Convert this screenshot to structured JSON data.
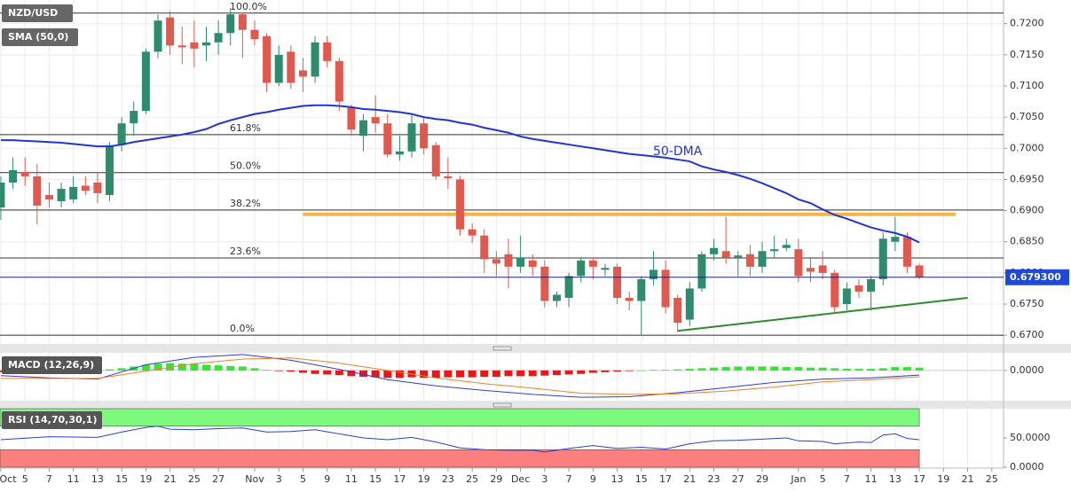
{
  "chart_data": [
    {
      "type": "candlestick",
      "title": "NZD/USD",
      "indicator": "SMA (50,0)",
      "xlim": [
        -0.07,
        82.97
      ],
      "ylim": [
        0.6686,
        0.7238
      ],
      "yticks": [
        {
          "value": 0.67,
          "label": "0.6700"
        },
        {
          "value": 0.675,
          "label": "0.6750"
        },
        {
          "value": 0.68,
          "label": "0.6800"
        },
        {
          "value": 0.685,
          "label": "0.6850"
        },
        {
          "value": 0.69,
          "label": "0.6900"
        },
        {
          "value": 0.695,
          "label": "0.6950"
        },
        {
          "value": 0.7,
          "label": "0.7000"
        },
        {
          "value": 0.705,
          "label": "0.7050"
        },
        {
          "value": 0.71,
          "label": "0.7100"
        },
        {
          "value": 0.715,
          "label": "0.7150"
        },
        {
          "value": 0.72,
          "label": "0.7200"
        }
      ],
      "up_color": "#2e8b6e",
      "down_color": "#e0594f",
      "open": [
        0.6905,
        0.6945,
        0.6962,
        0.6955,
        0.6925,
        0.6915,
        0.6918,
        0.694,
        0.6945,
        0.6925,
        0.7005,
        0.704,
        0.706,
        0.7155,
        0.721,
        0.7165,
        0.717,
        0.7165,
        0.717,
        0.7185,
        0.7215,
        0.719,
        0.718,
        0.7105,
        0.7155,
        0.7125,
        0.7115,
        0.717,
        0.714,
        0.7065,
        0.702,
        0.705,
        0.704,
        0.699,
        0.6995,
        0.704,
        0.7005,
        0.6955,
        0.695,
        0.687,
        0.686,
        0.6822,
        0.683,
        0.681,
        0.682,
        0.681,
        0.6755,
        0.676,
        0.6795,
        0.682,
        0.6805,
        0.681,
        0.676,
        0.6755,
        0.679,
        0.6805,
        0.676,
        0.6725,
        0.6775,
        0.683,
        0.6835,
        0.6825,
        0.683,
        0.681,
        0.6835,
        0.684,
        0.6838,
        0.6808,
        0.6812,
        0.68,
        0.675,
        0.678,
        0.677,
        0.679,
        0.685,
        0.6858,
        0.6812
      ],
      "high": [
        0.6955,
        0.6985,
        0.6985,
        0.6975,
        0.6945,
        0.6945,
        0.6955,
        0.6955,
        0.6962,
        0.701,
        0.705,
        0.7075,
        0.716,
        0.7215,
        0.722,
        0.7195,
        0.7205,
        0.7195,
        0.7205,
        0.7225,
        0.7218,
        0.7205,
        0.7185,
        0.7165,
        0.7165,
        0.7145,
        0.718,
        0.718,
        0.7145,
        0.707,
        0.7055,
        0.7085,
        0.7055,
        0.702,
        0.7055,
        0.705,
        0.701,
        0.6985,
        0.6955,
        0.688,
        0.687,
        0.6835,
        0.6855,
        0.686,
        0.683,
        0.682,
        0.677,
        0.68,
        0.6825,
        0.6825,
        0.6815,
        0.6815,
        0.677,
        0.6795,
        0.6835,
        0.682,
        0.6765,
        0.6785,
        0.6835,
        0.6855,
        0.689,
        0.6835,
        0.6845,
        0.685,
        0.686,
        0.6855,
        0.6855,
        0.6825,
        0.6835,
        0.6805,
        0.6785,
        0.679,
        0.6795,
        0.6865,
        0.689,
        0.6865,
        0.6815
      ],
      "low": [
        0.6885,
        0.6935,
        0.694,
        0.6878,
        0.6905,
        0.6905,
        0.6912,
        0.6925,
        0.6912,
        0.6915,
        0.6995,
        0.702,
        0.7055,
        0.7145,
        0.715,
        0.7135,
        0.713,
        0.714,
        0.715,
        0.7165,
        0.7145,
        0.7165,
        0.709,
        0.71,
        0.7095,
        0.709,
        0.7105,
        0.713,
        0.706,
        0.702,
        0.6995,
        0.7025,
        0.6985,
        0.698,
        0.6985,
        0.699,
        0.695,
        0.6935,
        0.686,
        0.6848,
        0.68,
        0.6795,
        0.6775,
        0.68,
        0.6795,
        0.6745,
        0.6745,
        0.6745,
        0.6785,
        0.679,
        0.6795,
        0.675,
        0.674,
        0.67,
        0.678,
        0.6735,
        0.6705,
        0.6715,
        0.677,
        0.682,
        0.6815,
        0.6795,
        0.6795,
        0.68,
        0.6825,
        0.6835,
        0.6785,
        0.6785,
        0.679,
        0.6735,
        0.674,
        0.676,
        0.674,
        0.678,
        0.6835,
        0.68,
        0.679
      ],
      "close": [
        0.6945,
        0.6965,
        0.6955,
        0.6908,
        0.6918,
        0.6935,
        0.6938,
        0.6932,
        0.6928,
        0.7005,
        0.704,
        0.706,
        0.7155,
        0.7205,
        0.7165,
        0.7162,
        0.716,
        0.717,
        0.7185,
        0.7215,
        0.719,
        0.7175,
        0.7105,
        0.715,
        0.7105,
        0.7115,
        0.717,
        0.714,
        0.7075,
        0.703,
        0.7045,
        0.704,
        0.699,
        0.6995,
        0.704,
        0.7,
        0.6955,
        0.6952,
        0.687,
        0.686,
        0.6822,
        0.6815,
        0.681,
        0.6825,
        0.681,
        0.6755,
        0.6765,
        0.6795,
        0.682,
        0.681,
        0.6808,
        0.676,
        0.6755,
        0.679,
        0.6805,
        0.6745,
        0.672,
        0.6775,
        0.683,
        0.684,
        0.6825,
        0.6828,
        0.681,
        0.6835,
        0.6838,
        0.6845,
        0.6795,
        0.6802,
        0.68,
        0.6745,
        0.6775,
        0.677,
        0.679,
        0.6855,
        0.6858,
        0.681,
        0.6793
      ],
      "sma": {
        "name": "50-DMA",
        "color": "#1f35d6",
        "values": [
          0.7013,
          0.7013,
          0.7012,
          0.7011,
          0.701,
          0.7009,
          0.7007,
          0.7005,
          0.7003,
          0.7003,
          0.7006,
          0.701,
          0.7013,
          0.7016,
          0.7019,
          0.7022,
          0.7026,
          0.7031,
          0.7039,
          0.7045,
          0.705,
          0.7055,
          0.7058,
          0.7062,
          0.7065,
          0.7068,
          0.7069,
          0.7069,
          0.7068,
          0.7066,
          0.7063,
          0.7062,
          0.706,
          0.7058,
          0.7055,
          0.705,
          0.7047,
          0.7045,
          0.7041,
          0.7038,
          0.7033,
          0.7029,
          0.7025,
          0.7019,
          0.7015,
          0.7012,
          0.7009,
          0.7006,
          0.7003,
          0.7,
          0.6997,
          0.6994,
          0.6991,
          0.6989,
          0.6987,
          0.6985,
          0.6982,
          0.6979,
          0.6971,
          0.6966,
          0.6962,
          0.6957,
          0.6951,
          0.6944,
          0.6936,
          0.6928,
          0.6918,
          0.6912,
          0.6902,
          0.6893,
          0.6887,
          0.688,
          0.6873,
          0.6868,
          0.6864,
          0.6858,
          0.6849
        ]
      },
      "fib_levels": [
        {
          "label": "100.0%",
          "value": 0.7217
        },
        {
          "label": "61.8%",
          "value": 0.7022
        },
        {
          "label": "50.0%",
          "value": 0.6961
        },
        {
          "label": "38.2%",
          "value": 0.6901
        },
        {
          "label": "23.6%",
          "value": 0.6824
        },
        {
          "label": "0.0%",
          "value": 0.67
        }
      ],
      "resistance": {
        "color": "#f5b544",
        "x": [
          25,
          79
        ],
        "y": [
          0.6894,
          0.6894
        ]
      },
      "support": {
        "color": "#2e8b2e",
        "x": [
          56,
          80
        ],
        "y": [
          0.6707,
          0.676
        ]
      },
      "last_price": {
        "value": 0.6793,
        "label": "0.679300"
      }
    },
    {
      "type": "bar",
      "title": "MACD (12,26,9)",
      "xlim": [
        -0.07,
        82.97
      ],
      "ylim": [
        -0.0053,
        0.0031
      ],
      "yticks": [
        {
          "value": 0,
          "label": "0.0000"
        }
      ],
      "up_color": "#33e633",
      "down_color": "#e61919",
      "values": [
        -0.0003,
        -0.0003,
        -0.0002,
        -0.0001,
        0,
        -0.0001,
        -0.0001,
        -0.0001,
        -0.0001,
        0.0002,
        0.0004,
        0.0007,
        0.001,
        0.0012,
        0.0013,
        0.0012,
        0.0012,
        0.001,
        0.0009,
        0.0008,
        0.0007,
        0.0004,
        0.0001,
        -0.0001,
        -0.0002,
        -0.0004,
        -0.0006,
        -0.0007,
        -0.0008,
        -0.001,
        -0.0011,
        -0.0012,
        -0.0013,
        -0.0013,
        -0.0012,
        -0.0013,
        -0.0013,
        -0.0012,
        -0.0012,
        -0.0012,
        -0.0011,
        -0.0011,
        -0.001,
        -0.001,
        -0.001,
        -0.0009,
        -0.0008,
        -0.0007,
        -0.0006,
        -0.0004,
        -0.0003,
        -0.0002,
        -0.0001,
        0,
        0.0001,
        0.0001,
        0.0002,
        0.0003,
        0.0004,
        0.0005,
        0.0006,
        0.0007,
        0.0007,
        0.0007,
        0.0007,
        0.0006,
        0.0006,
        0.0005,
        0.0005,
        0.0004,
        0.0003,
        0.0003,
        0.0003,
        0.0004,
        0.0006,
        0.0006,
        0.0005
      ],
      "lines": [
        {
          "color": "#2a3fd8",
          "x": [
            0,
            4,
            8,
            12,
            16,
            20,
            24,
            28,
            32,
            36,
            40,
            44,
            48,
            52,
            56,
            60,
            64,
            68,
            72,
            76
          ],
          "values": [
            -0.0009,
            -0.0013,
            -0.0015,
            0.001,
            0.0023,
            0.0028,
            0.0018,
            0.0002,
            -0.0016,
            -0.0027,
            -0.0035,
            -0.0042,
            -0.0047,
            -0.0046,
            -0.0039,
            -0.003,
            -0.0021,
            -0.0015,
            -0.0013,
            -0.0008
          ]
        },
        {
          "color": "#f0802a",
          "x": [
            0,
            4,
            8,
            12,
            16,
            20,
            24,
            28,
            32,
            36,
            40,
            44,
            48,
            52,
            56,
            60,
            64,
            68,
            72,
            76
          ],
          "values": [
            -0.0014,
            -0.0014,
            -0.0014,
            -0.0001,
            0.0012,
            0.002,
            0.0022,
            0.0013,
            0,
            -0.0013,
            -0.0023,
            -0.0031,
            -0.004,
            -0.0042,
            -0.0041,
            -0.0036,
            -0.0029,
            -0.002,
            -0.0016,
            -0.0011
          ]
        }
      ]
    },
    {
      "type": "line",
      "title": "RSI (14,70,30,1)",
      "xlim": [
        -0.07,
        82.97
      ],
      "ylim": [
        0,
        100
      ],
      "yticks": [
        {
          "value": 50,
          "label": "50.0000"
        },
        {
          "value": 0,
          "label": "0.0000"
        }
      ],
      "bands": [
        {
          "from": 70,
          "to": 100,
          "color": "#7dfa7d"
        },
        {
          "from": 0,
          "to": 30,
          "color": "#fa8080"
        }
      ],
      "color": "#2a3fd8",
      "x": [
        0,
        4,
        8,
        10,
        12,
        13,
        14,
        16,
        18,
        20,
        22,
        24,
        26,
        28,
        30,
        32,
        34,
        36,
        38,
        40,
        42,
        44,
        45,
        47,
        49,
        51,
        53,
        55,
        57,
        59,
        61,
        63,
        65,
        66,
        68,
        69,
        71,
        72,
        73,
        74,
        75,
        76
      ],
      "values": [
        47,
        52,
        51,
        60,
        68,
        70,
        65,
        64,
        66,
        67,
        60,
        61,
        64,
        57,
        50,
        47,
        51,
        43,
        33,
        30,
        29,
        29,
        26,
        32,
        37,
        32,
        34,
        31,
        40,
        45,
        46,
        48,
        50,
        45,
        44,
        40,
        43,
        42,
        55,
        57,
        49,
        47
      ],
      "xticks": [
        {
          "value": 0,
          "label": "Oct"
        },
        {
          "value": 2,
          "label": "5"
        },
        {
          "value": 4,
          "label": "7"
        },
        {
          "value": 6,
          "label": "11"
        },
        {
          "value": 8,
          "label": "13"
        },
        {
          "value": 10,
          "label": "15"
        },
        {
          "value": 12,
          "label": "19"
        },
        {
          "value": 14,
          "label": "21"
        },
        {
          "value": 16,
          "label": "25"
        },
        {
          "value": 18,
          "label": "27"
        },
        {
          "value": 21,
          "label": "Nov"
        },
        {
          "value": 23,
          "label": "3"
        },
        {
          "value": 25,
          "label": "5"
        },
        {
          "value": 27,
          "label": "9"
        },
        {
          "value": 29,
          "label": "11"
        },
        {
          "value": 31,
          "label": "15"
        },
        {
          "value": 33,
          "label": "17"
        },
        {
          "value": 35,
          "label": "19"
        },
        {
          "value": 37,
          "label": "23"
        },
        {
          "value": 39,
          "label": "25"
        },
        {
          "value": 41,
          "label": "29"
        },
        {
          "value": 43,
          "label": "Dec"
        },
        {
          "value": 45,
          "label": "3"
        },
        {
          "value": 47,
          "label": "7"
        },
        {
          "value": 49,
          "label": "9"
        },
        {
          "value": 51,
          "label": "13"
        },
        {
          "value": 53,
          "label": "15"
        },
        {
          "value": 55,
          "label": "17"
        },
        {
          "value": 57,
          "label": "21"
        },
        {
          "value": 59,
          "label": "23"
        },
        {
          "value": 61,
          "label": "27"
        },
        {
          "value": 63,
          "label": "29"
        },
        {
          "value": 66,
          "label": "Jan"
        },
        {
          "value": 68,
          "label": "5"
        },
        {
          "value": 70,
          "label": "7"
        },
        {
          "value": 72,
          "label": "11"
        },
        {
          "value": 74,
          "label": "13"
        },
        {
          "value": 76,
          "label": "17"
        },
        {
          "value": 78,
          "label": "19"
        },
        {
          "value": 80,
          "label": "21"
        },
        {
          "value": 82,
          "label": "25"
        }
      ]
    }
  ]
}
